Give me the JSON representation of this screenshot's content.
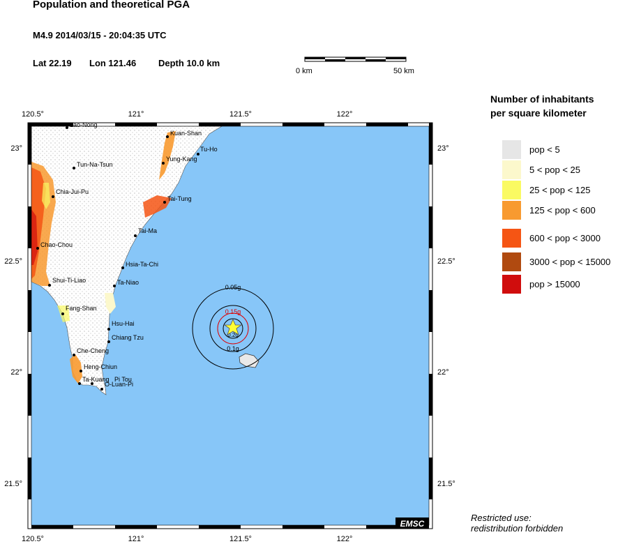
{
  "header": {
    "title": "Population and theoretical PGA",
    "event": "M4.9  2014/03/15 - 20:04:35 UTC",
    "lat": "Lat 22.19",
    "lon": "Lon 121.46",
    "depth": "Depth  10.0 km"
  },
  "scale_bar": {
    "start_label": "0 km",
    "end_label": "50 km"
  },
  "map": {
    "x_ticks": [
      "120.5°",
      "121°",
      "121.5°",
      "122°"
    ],
    "y_ticks": [
      "23°",
      "22.5°",
      "22°",
      "21.5°"
    ],
    "sea_color": "#87c6f8",
    "badge": "EMSC"
  },
  "places": [
    {
      "name": "Lao-Nong"
    },
    {
      "name": "Kuan-Shan"
    },
    {
      "name": "Tu-Ho"
    },
    {
      "name": "Yung-Kang"
    },
    {
      "name": "Tun-Na-Tsun"
    },
    {
      "name": "Chia-Jui-Pu"
    },
    {
      "name": "Tai-Tung"
    },
    {
      "name": "Tai-Ma"
    },
    {
      "name": "Chao-Chou"
    },
    {
      "name": "Hsia-Ta-Chi"
    },
    {
      "name": "Shui-Ti-Liao"
    },
    {
      "name": "Ta-Niao"
    },
    {
      "name": "Fang-Shan"
    },
    {
      "name": "Hsu-Hai"
    },
    {
      "name": "Chiang Tzu"
    },
    {
      "name": "Che-Cheng"
    },
    {
      "name": "Heng-Chiun"
    },
    {
      "name": "Ta-Kuang"
    },
    {
      "name": "Pi Tou"
    },
    {
      "name": "O-Luan-Pi"
    }
  ],
  "pga_contours": [
    {
      "label": "0.05g",
      "color": "#000000"
    },
    {
      "label": "0.1g",
      "color": "#000000"
    },
    {
      "label": "0.15g",
      "color": "#dd0000"
    },
    {
      "label": "0.2g",
      "color": "#000000"
    }
  ],
  "legend": {
    "title_line1": "Number of inhabitants",
    "title_line2": "per square kilometer",
    "items": [
      {
        "label": "pop < 5",
        "color": "#e6e6e6"
      },
      {
        "label": "5 < pop < 25",
        "color": "#fcf8cc"
      },
      {
        "label": "25 < pop < 125",
        "color": "#fafa62"
      },
      {
        "label": "125 < pop < 600",
        "color": "#f89a30"
      },
      {
        "label": "600 < pop < 3000",
        "color": "#f55514"
      },
      {
        "label": "3000 < pop < 15000",
        "color": "#b04a10"
      },
      {
        "label": "pop > 15000",
        "color": "#d00d0d"
      }
    ]
  },
  "footer": {
    "line1": "Restricted use:",
    "line2": "redistribution forbidden"
  }
}
